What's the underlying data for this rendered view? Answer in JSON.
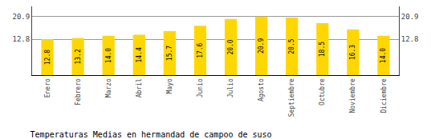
{
  "chart_data": {
    "type": "bar",
    "title": "Temperaturas Medias en hermandad de campoo de suso",
    "categories": [
      "Enero",
      "Febrero",
      "Marzo",
      "Abril",
      "Mayo",
      "Junio",
      "Julio",
      "Agosto",
      "Septiembre",
      "Octubre",
      "Noviembre",
      "Diciembre"
    ],
    "values": [
      12.8,
      13.2,
      14.0,
      14.4,
      15.7,
      17.6,
      20.0,
      20.9,
      20.5,
      18.5,
      16.3,
      14.0
    ],
    "value_labels": [
      "12.8",
      "13.2",
      "14.0",
      "14.4",
      "15.7",
      "17.6",
      "20.0",
      "20.9",
      "20.5",
      "18.5",
      "16.3",
      "14.0"
    ],
    "data_labels": true,
    "color": "#FFD700",
    "ylim": [
      0,
      24.5
    ],
    "yticks": [
      12.8,
      20.9
    ],
    "y2lim": [
      0,
      24.5
    ],
    "y2ticks": [
      12.8,
      20.9
    ],
    "grid": true
  }
}
